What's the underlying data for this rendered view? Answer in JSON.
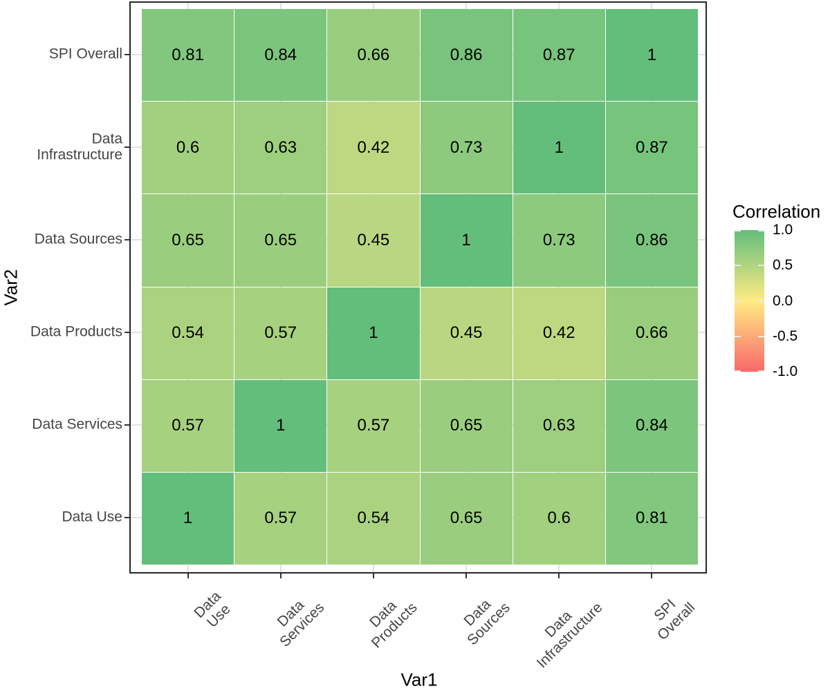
{
  "chart_data": {
    "type": "heatmap",
    "title": "",
    "xlabel": "Var1",
    "ylabel": "Var2",
    "x_categories": [
      "Data Use",
      "Data\nServices",
      "Data\nProducts",
      "Data Sources",
      "Data\nInfrastructure",
      "SPI Overall"
    ],
    "y_categories_top_to_bottom": [
      "SPI Overall",
      "Data\nInfrastructure",
      "Data Sources",
      "Data Products",
      "Data Services",
      "Data Use"
    ],
    "matrix_rows_top_to_bottom": [
      [
        0.81,
        0.84,
        0.66,
        0.86,
        0.87,
        1
      ],
      [
        0.6,
        0.63,
        0.42,
        0.73,
        1,
        0.87
      ],
      [
        0.65,
        0.65,
        0.45,
        1,
        0.73,
        0.86
      ],
      [
        0.54,
        0.57,
        1,
        0.45,
        0.42,
        0.66
      ],
      [
        0.57,
        1,
        0.57,
        0.65,
        0.63,
        0.84
      ],
      [
        1,
        0.57,
        0.54,
        0.65,
        0.6,
        0.81
      ]
    ],
    "legend": {
      "title": "Correlation",
      "tick_labels": [
        "1.0",
        "0.5",
        "0.0",
        "-0.5",
        "-1.0"
      ],
      "tick_values": [
        1,
        0.5,
        0,
        -0.5,
        -1
      ],
      "range": [
        -1,
        1
      ],
      "position": "right"
    },
    "colors": {
      "high": "#63BE7B",
      "mid": "#FFEB84",
      "low": "#F8696B",
      "grid": "#E2E2E2",
      "panel_border": "#262626",
      "axis_text": "#444444",
      "cell_text": "#000000",
      "background": "#FFFFFF"
    },
    "grid": true
  }
}
